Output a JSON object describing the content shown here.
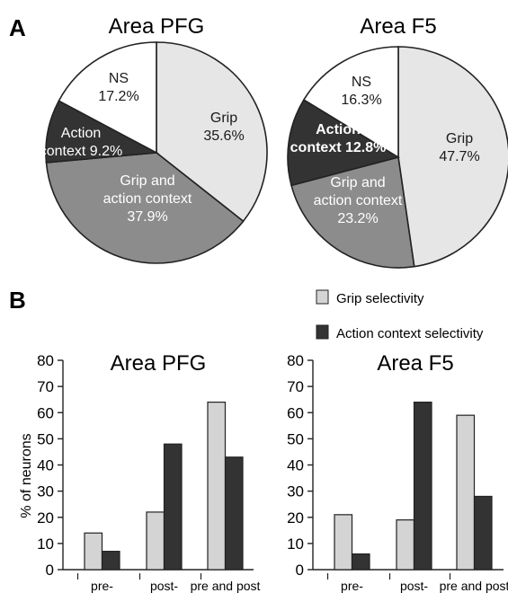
{
  "panel_labels": {
    "a": "A",
    "b": "B"
  },
  "legend": [
    {
      "label": "Grip selectivity",
      "color": "#d4d4d4"
    },
    {
      "label": "Action context selectivity",
      "color": "#333333"
    }
  ],
  "chart_data": [
    {
      "type": "pie",
      "title": "Area PFG",
      "slices": [
        {
          "label": [
            "Grip",
            "35.6%"
          ],
          "value": 35.6,
          "color": "#e6e6e6",
          "text_color": "#1a1a1a"
        },
        {
          "label": [
            "Grip and",
            "action context",
            "37.9%"
          ],
          "value": 37.9,
          "color": "#8c8c8c",
          "text_color": "#ffffff"
        },
        {
          "label": [
            "Action",
            "context 9.2%"
          ],
          "value": 9.2,
          "color": "#333333",
          "text_color": "#ffffff"
        },
        {
          "label": [
            "NS",
            "17.2%"
          ],
          "value": 17.2,
          "color": "#ffffff",
          "text_color": "#1a1a1a"
        }
      ]
    },
    {
      "type": "pie",
      "title": "Area F5",
      "slices": [
        {
          "label": [
            "Grip",
            "47.7%"
          ],
          "value": 47.7,
          "color": "#e6e6e6",
          "text_color": "#1a1a1a"
        },
        {
          "label": [
            "Grip and",
            "action context",
            "23.2%"
          ],
          "value": 23.2,
          "color": "#8c8c8c",
          "text_color": "#ffffff"
        },
        {
          "label": [
            "Action",
            "context 12.8%"
          ],
          "value": 12.8,
          "color": "#333333",
          "text_color": "#ffffff",
          "bold": true
        },
        {
          "label": [
            "NS",
            "16.3%"
          ],
          "value": 16.3,
          "color": "#ffffff",
          "text_color": "#1a1a1a"
        }
      ]
    },
    {
      "type": "bar",
      "title": "Area PFG",
      "categories": [
        "pre-",
        "post-",
        "pre and post"
      ],
      "ylabel": "% of neurons",
      "ylim": [
        0,
        80
      ],
      "yticks": [
        0,
        10,
        20,
        30,
        40,
        50,
        60,
        70,
        80
      ],
      "series": [
        {
          "name": "Grip selectivity",
          "values": [
            14,
            22,
            64
          ],
          "color": "#d4d4d4"
        },
        {
          "name": "Action context selectivity",
          "values": [
            7,
            48,
            43
          ],
          "color": "#333333"
        }
      ]
    },
    {
      "type": "bar",
      "title": "Area F5",
      "categories": [
        "pre-",
        "post-",
        "pre and post"
      ],
      "ylabel": "",
      "ylim": [
        0,
        80
      ],
      "yticks": [
        0,
        10,
        20,
        30,
        40,
        50,
        60,
        70,
        80
      ],
      "series": [
        {
          "name": "Grip selectivity",
          "values": [
            21,
            19,
            59
          ],
          "color": "#d4d4d4"
        },
        {
          "name": "Action context selectivity",
          "values": [
            6,
            64,
            28
          ],
          "color": "#333333"
        }
      ]
    }
  ]
}
